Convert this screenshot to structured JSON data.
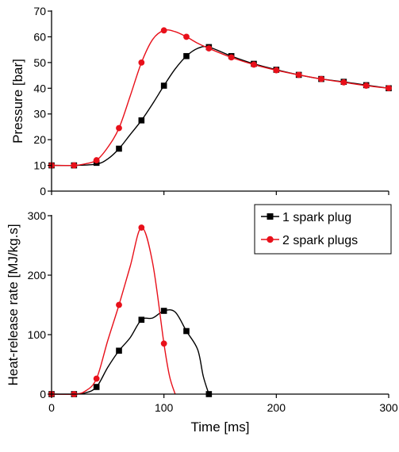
{
  "chart_data": [
    {
      "type": "line",
      "title": "",
      "xlabel": "",
      "ylabel": "Pressure [bar]",
      "xlim": [
        0,
        300
      ],
      "ylim": [
        0,
        70
      ],
      "xticks": [
        0,
        100,
        200,
        300
      ],
      "xtick_labels_shown": false,
      "yticks": [
        0,
        10,
        20,
        30,
        40,
        50,
        60,
        70
      ],
      "ytick_labels": [
        "0",
        "10",
        "20",
        "30",
        "40",
        "50",
        "60",
        "70"
      ],
      "grid": false,
      "series": [
        {
          "name": "1 spark plug",
          "color": "#000000",
          "marker": "square",
          "smooth_x": [
            0,
            20,
            40,
            50,
            60,
            70,
            80,
            90,
            100,
            110,
            120,
            130,
            140,
            160,
            180,
            200,
            220,
            240,
            260,
            280,
            300
          ],
          "smooth_y": [
            10,
            10,
            10.5,
            12.5,
            16.5,
            22,
            27.5,
            34,
            41,
            47.5,
            52.5,
            55.5,
            56,
            52.5,
            49.5,
            47.2,
            45.2,
            43.6,
            42.5,
            41.2,
            40
          ],
          "marker_x": [
            0,
            20,
            40,
            60,
            80,
            100,
            120,
            140,
            160,
            180,
            200,
            220,
            240,
            260,
            280,
            300
          ],
          "marker_y": [
            10,
            10,
            11,
            16.5,
            27.5,
            41,
            52.5,
            56,
            52.5,
            49.5,
            47.2,
            45.2,
            43.6,
            42.5,
            41.2,
            40
          ]
        },
        {
          "name": "2 spark plugs",
          "color": "#e8101a",
          "marker": "circle",
          "smooth_x": [
            0,
            20,
            30,
            40,
            50,
            60,
            70,
            80,
            90,
            100,
            110,
            120,
            130,
            140,
            160,
            180,
            200,
            220,
            240,
            260,
            280,
            300
          ],
          "smooth_y": [
            10,
            10,
            10.6,
            12,
            17,
            24.5,
            37,
            50,
            59,
            62.5,
            62,
            60,
            57.5,
            55.5,
            52,
            49.2,
            47,
            45.2,
            43.6,
            42.3,
            41,
            40
          ],
          "marker_x": [
            0,
            20,
            40,
            60,
            80,
            100,
            120,
            140,
            160,
            180,
            200,
            220,
            240,
            260,
            280,
            300
          ],
          "marker_y": [
            10,
            10,
            12,
            24.5,
            50,
            62.5,
            60,
            55.5,
            52,
            49.2,
            47,
            45.2,
            43.6,
            42.3,
            41,
            40
          ]
        }
      ]
    },
    {
      "type": "line",
      "title": "",
      "xlabel": "Time [ms]",
      "ylabel": "Heat-release rate [MJ/kg.s]",
      "xlim": [
        0,
        300
      ],
      "ylim": [
        0,
        300
      ],
      "xticks": [
        0,
        100,
        200,
        300
      ],
      "xtick_labels": [
        "0",
        "100",
        "200",
        "300"
      ],
      "yticks": [
        0,
        100,
        200,
        300
      ],
      "ytick_labels": [
        "0",
        "100",
        "200",
        "300"
      ],
      "grid": false,
      "legend": {
        "position": "top-right",
        "entries": [
          "1 spark plug",
          "2 spark plugs"
        ]
      },
      "series": [
        {
          "name": "1 spark plug",
          "color": "#000000",
          "marker": "square",
          "smooth_x": [
            0,
            20,
            30,
            40,
            50,
            60,
            70,
            80,
            90,
            100,
            110,
            120,
            130,
            135,
            140
          ],
          "smooth_y": [
            0,
            0,
            2,
            12,
            45,
            73,
            95,
            125,
            128,
            140,
            138,
            106,
            75,
            30,
            0
          ],
          "marker_x": [
            0,
            20,
            40,
            60,
            80,
            100,
            120,
            140
          ],
          "marker_y": [
            0,
            0,
            12,
            73,
            125,
            140,
            106,
            0
          ]
        },
        {
          "name": "2 spark plugs",
          "color": "#e8101a",
          "marker": "circle",
          "smooth_x": [
            0,
            20,
            30,
            40,
            50,
            60,
            70,
            80,
            90,
            100,
            105,
            110
          ],
          "smooth_y": [
            0,
            0,
            5,
            26,
            90,
            150,
            215,
            280,
            220,
            85,
            30,
            0
          ],
          "marker_x": [
            0,
            20,
            40,
            60,
            80,
            100
          ],
          "marker_y": [
            0,
            0,
            26,
            150,
            280,
            85
          ]
        }
      ]
    }
  ]
}
